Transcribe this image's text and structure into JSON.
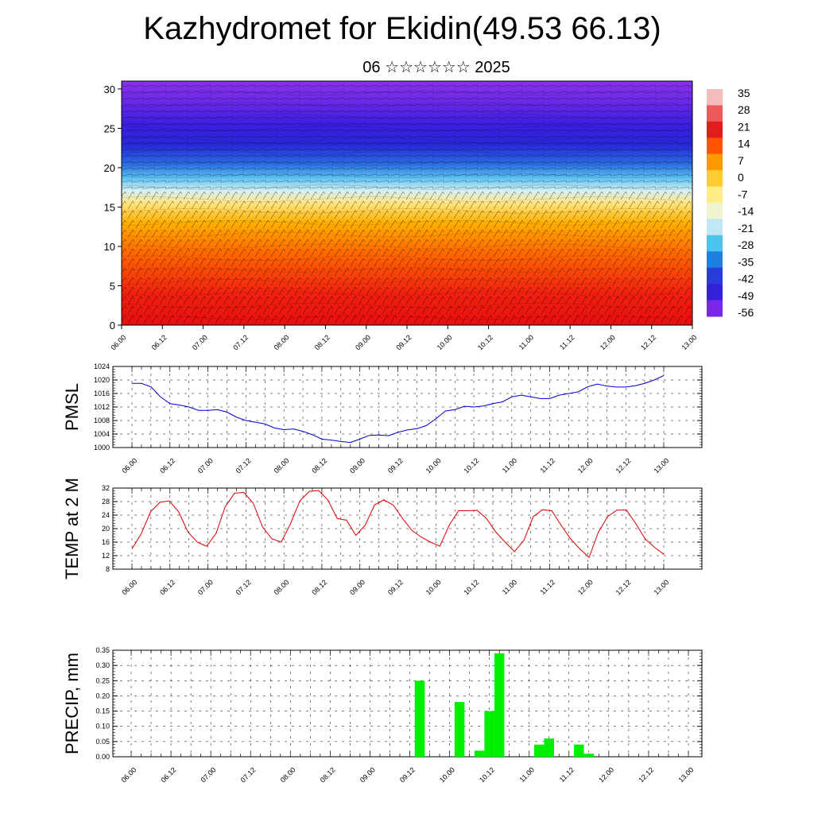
{
  "title": "Kazhydromet for Ekidin(49.53 66.13)",
  "subtitle": "06 ☆☆☆☆☆☆ 2025",
  "time_labels": [
    "06.00",
    "06.12",
    "07.00",
    "07.12",
    "08.00",
    "08.12",
    "09.00",
    "09.12",
    "10.00",
    "10.12",
    "11.00",
    "11.12",
    "12.00",
    "12.12",
    "13.00"
  ],
  "chart_data": [
    {
      "type": "heatmap",
      "name": "temperature-wind-cross-section",
      "y_ticks": [
        "0",
        "5",
        "10",
        "15",
        "20",
        "25",
        "30"
      ],
      "ylim": [
        0,
        31
      ],
      "colorbar_labels": [
        "35",
        "28",
        "21",
        "14",
        "7",
        "0",
        "-7",
        "-14",
        "-21",
        "-28",
        "-35",
        "-42",
        "-49",
        "-56"
      ],
      "colorbar_colors": [
        "#f4bcbc",
        "#ee5a5a",
        "#e01c1c",
        "#ff5500",
        "#ff9900",
        "#ffcc33",
        "#ffee88",
        "#eef4cc",
        "#bfe8f4",
        "#4dc3f0",
        "#1e7fe0",
        "#2a3cd8",
        "#3322d8",
        "#7a28e6"
      ],
      "layers": [
        {
          "level": 0,
          "value": 24
        },
        {
          "level": 5,
          "value": 20
        },
        {
          "level": 10,
          "value": 10
        },
        {
          "level": 15,
          "value": -8
        },
        {
          "level": 18,
          "value": -20
        },
        {
          "level": 21,
          "value": -40
        },
        {
          "level": 24,
          "value": -58
        },
        {
          "level": 31,
          "value": -62
        }
      ]
    },
    {
      "type": "line",
      "name": "PMSL",
      "ylabel": "PMSL",
      "ylim": [
        1000,
        1024
      ],
      "y_ticks": [
        "1000",
        "1004",
        "1008",
        "1012",
        "1016",
        "1020",
        "1024"
      ],
      "color": "#0000cc",
      "values": [
        1019,
        1019,
        1018,
        1015,
        1013,
        1012.6,
        1012,
        1011,
        1011,
        1011.2,
        1010.5,
        1009,
        1008,
        1007.5,
        1007,
        1005.8,
        1005.3,
        1005.5,
        1004.8,
        1003.8,
        1002.5,
        1002.2,
        1001.8,
        1001.5,
        1002.5,
        1003.6,
        1003.7,
        1003.5,
        1004.5,
        1005.2,
        1005.6,
        1006.5,
        1008.5,
        1010.8,
        1011.2,
        1012.2,
        1012,
        1012.3,
        1013,
        1013.5,
        1015,
        1015.5,
        1015,
        1014.5,
        1014.5,
        1015.5,
        1016,
        1016.5,
        1018,
        1018.8,
        1018.2,
        1017.9,
        1017.9,
        1018.3,
        1019,
        1020,
        1021.3
      ]
    },
    {
      "type": "line",
      "name": "TEMP at 2 M",
      "ylabel": "TEMP at 2 M",
      "ylim": [
        8,
        32
      ],
      "y_ticks": [
        "8",
        "12",
        "16",
        "20",
        "24",
        "28",
        "32"
      ],
      "color": "#dd0000",
      "values": [
        14,
        18.5,
        25,
        27.8,
        28.2,
        25,
        19,
        16,
        14.8,
        18.5,
        26.5,
        30.5,
        30.7,
        27.5,
        20.5,
        17,
        16,
        21.5,
        28.2,
        31,
        31.3,
        28.5,
        23,
        22.5,
        18,
        21,
        27,
        28.5,
        27,
        23,
        19.5,
        17.5,
        16,
        14.8,
        21,
        25.3,
        25.3,
        25.4,
        23,
        19,
        16,
        13.2,
        16.5,
        23.5,
        25.6,
        25.3,
        21,
        17,
        14,
        11.5,
        19,
        23.6,
        25.5,
        25.5,
        21.5,
        17,
        14.5,
        12.4
      ]
    },
    {
      "type": "bar",
      "name": "PRECIP, mm",
      "ylabel": "PRECIP, mm",
      "ylim": [
        0,
        0.35
      ],
      "y_ticks": [
        "0.00",
        "0.05",
        "0.10",
        "0.15",
        "0.20",
        "0.25",
        "0.30",
        "0.35"
      ],
      "color": "#00ee00",
      "bars": [
        {
          "step": 29,
          "value": 0.25
        },
        {
          "step": 33,
          "value": 0.18
        },
        {
          "step": 35,
          "value": 0.02
        },
        {
          "step": 36,
          "value": 0.15
        },
        {
          "step": 37,
          "value": 0.34
        },
        {
          "step": 41,
          "value": 0.04
        },
        {
          "step": 42,
          "value": 0.06
        },
        {
          "step": 45,
          "value": 0.04
        },
        {
          "step": 46,
          "value": 0.01
        }
      ]
    }
  ]
}
